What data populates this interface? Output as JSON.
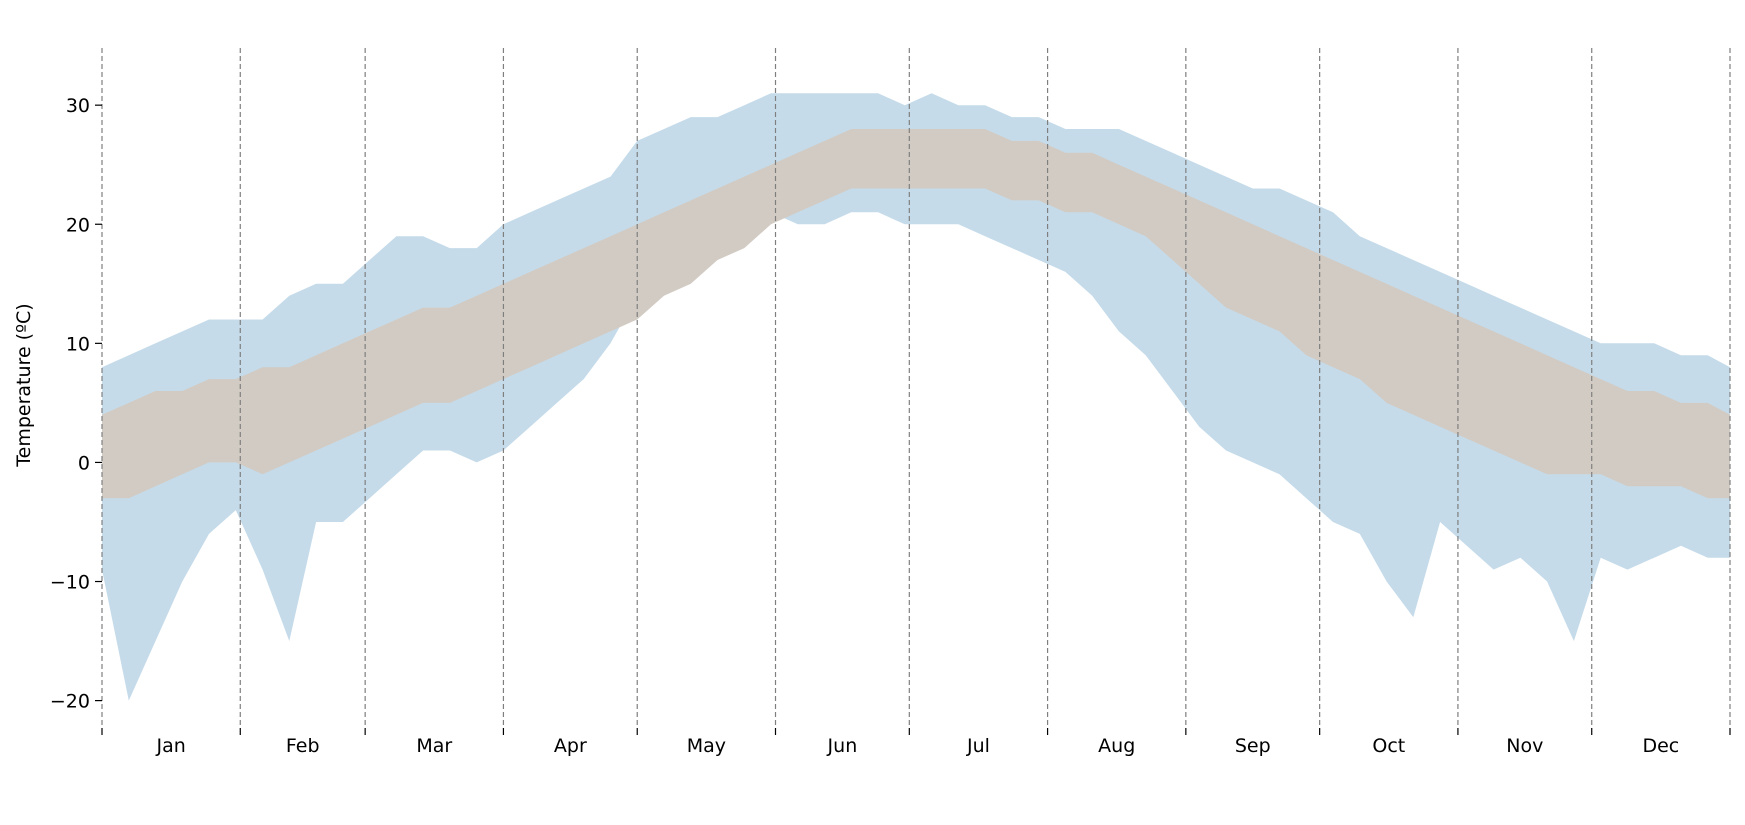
{
  "chart_data": {
    "type": "area",
    "title": "",
    "xlabel": "",
    "ylabel": "Temperature (ºC)",
    "ylim": [
      -22.3,
      34.8
    ],
    "xlim": [
      0,
      365
    ],
    "yticks": [
      30,
      20,
      10,
      0,
      -10,
      -20
    ],
    "ytick_labels": [
      "30",
      "20",
      "10",
      "0",
      "−10",
      "−20"
    ],
    "month_boundaries": [
      0,
      31,
      59,
      90,
      120,
      151,
      181,
      212,
      243,
      273,
      304,
      334,
      365
    ],
    "months": [
      "Jan",
      "Feb",
      "Mar",
      "Apr",
      "May",
      "Jun",
      "Jul",
      "Aug",
      "Sep",
      "Oct",
      "Nov",
      "Dec"
    ],
    "grid": false,
    "month_dividers": "dashed",
    "colors": {
      "extreme_band": "#c5dbea",
      "normal_band": "#d2cbc3",
      "divider": "#7f7f7f",
      "axis": "#000000"
    },
    "series": [
      {
        "role": "extreme-range",
        "x": [
          0,
          6,
          12,
          18,
          24,
          30,
          36,
          42,
          48,
          54,
          60,
          66,
          72,
          78,
          84,
          90,
          96,
          102,
          108,
          114,
          120,
          126,
          132,
          138,
          144,
          150,
          156,
          162,
          168,
          174,
          180,
          186,
          192,
          198,
          204,
          210,
          216,
          222,
          228,
          234,
          240,
          246,
          252,
          258,
          264,
          270,
          276,
          282,
          288,
          294,
          300,
          306,
          312,
          318,
          324,
          330,
          336,
          342,
          348,
          354,
          360,
          365
        ],
        "upper": [
          8,
          9,
          10,
          11,
          12,
          12,
          12,
          14,
          15,
          15,
          17,
          19,
          19,
          18,
          18,
          20,
          21,
          22,
          23,
          24,
          27,
          28,
          29,
          29,
          30,
          31,
          31,
          31,
          31,
          31,
          30,
          31,
          30,
          30,
          29,
          29,
          28,
          28,
          28,
          27,
          26,
          25,
          24,
          23,
          23,
          22,
          21,
          19,
          18,
          17,
          16,
          15,
          14,
          13,
          12,
          11,
          10,
          10,
          10,
          9,
          9,
          8
        ],
        "lower": [
          -9,
          -20,
          -15,
          -10,
          -6,
          -4,
          -9,
          -15,
          -5,
          -5,
          -3,
          -1,
          1,
          1,
          0,
          1,
          3,
          5,
          7,
          10,
          14,
          16,
          18,
          19,
          20,
          21,
          20,
          20,
          21,
          21,
          20,
          20,
          20,
          19,
          18,
          17,
          16,
          14,
          11,
          9,
          6,
          3,
          1,
          0,
          -1,
          -3,
          -5,
          -6,
          -10,
          -13,
          -5,
          -7,
          -9,
          -8,
          -10,
          -15,
          -8,
          -9,
          -8,
          -7,
          -8,
          -8
        ]
      },
      {
        "role": "normal-range",
        "x": [
          0,
          6,
          12,
          18,
          24,
          30,
          36,
          42,
          48,
          54,
          60,
          66,
          72,
          78,
          84,
          90,
          96,
          102,
          108,
          114,
          120,
          126,
          132,
          138,
          144,
          150,
          156,
          162,
          168,
          174,
          180,
          186,
          192,
          198,
          204,
          210,
          216,
          222,
          228,
          234,
          240,
          246,
          252,
          258,
          264,
          270,
          276,
          282,
          288,
          294,
          300,
          306,
          312,
          318,
          324,
          330,
          336,
          342,
          348,
          354,
          360,
          365
        ],
        "upper": [
          4,
          5,
          6,
          6,
          7,
          7,
          8,
          8,
          9,
          10,
          11,
          12,
          13,
          13,
          14,
          15,
          16,
          17,
          18,
          19,
          20,
          21,
          22,
          23,
          24,
          25,
          26,
          27,
          28,
          28,
          28,
          28,
          28,
          28,
          27,
          27,
          26,
          26,
          25,
          24,
          23,
          22,
          21,
          20,
          19,
          18,
          17,
          16,
          15,
          14,
          13,
          12,
          11,
          10,
          9,
          8,
          7,
          6,
          6,
          5,
          5,
          4
        ],
        "lower": [
          -3,
          -3,
          -2,
          -1,
          0,
          0,
          -1,
          0,
          1,
          2,
          3,
          4,
          5,
          5,
          6,
          7,
          8,
          9,
          10,
          11,
          12,
          14,
          15,
          17,
          18,
          20,
          21,
          22,
          23,
          23,
          23,
          23,
          23,
          23,
          22,
          22,
          21,
          21,
          20,
          19,
          17,
          15,
          13,
          12,
          11,
          9,
          8,
          7,
          5,
          4,
          3,
          2,
          1,
          0,
          -1,
          -1,
          -1,
          -2,
          -2,
          -2,
          -3,
          -3
        ]
      }
    ]
  }
}
